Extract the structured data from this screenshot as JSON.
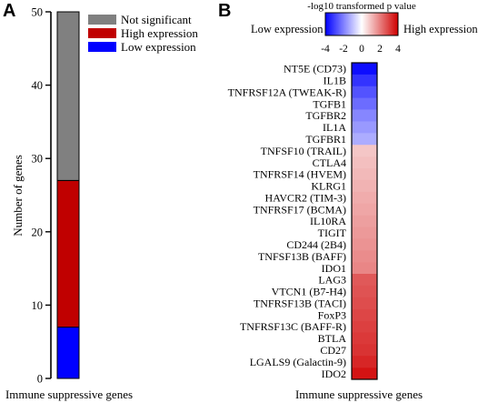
{
  "panel_a_letter": "A",
  "panel_b_letter": "B",
  "chart_data": [
    {
      "type": "bar",
      "stacked": true,
      "categories": [
        "Immune suppressive genes"
      ],
      "series": [
        {
          "name": "Low expression",
          "values": [
            7
          ],
          "color": "#0000ff"
        },
        {
          "name": "High expression",
          "values": [
            20
          ],
          "color": "#c00000"
        },
        {
          "name": "Not significant",
          "values": [
            23
          ],
          "color": "#808080"
        }
      ],
      "legend_order": [
        "Not significant",
        "High expression",
        "Low expression"
      ],
      "legend_position": "top-right",
      "xlabel": "Immune suppressive genes",
      "ylabel": "Number of genes",
      "ylim": [
        0,
        50
      ],
      "yticks": [
        0,
        10,
        20,
        30,
        40,
        50
      ],
      "grid": false
    },
    {
      "type": "heatmap",
      "xlabel": "Immune suppressive genes",
      "colorbar": {
        "title": "-log10 transformed p value",
        "range": [
          -4,
          4
        ],
        "ticks": [
          -4,
          -2,
          0,
          2,
          4
        ],
        "low_label": "Low expression",
        "high_label": "High expression",
        "low_color": "#0000ff",
        "mid_color": "#ffffff",
        "high_color": "#d00000"
      },
      "genes": [
        "NT5E (CD73)",
        "IL1B",
        "TNFRSF12A (TWEAK-R)",
        "TGFB1",
        "TGFBR2",
        "IL1A",
        "TGFBR1",
        "TNFSF10 (TRAIL)",
        "CTLA4",
        "TNFRSF14 (HVEM)",
        "KLRG1",
        "HAVCR2 (TIM-3)",
        "TNFRSF17 (BCMA)",
        "IL10RA",
        "TIGIT",
        "CD244 (2B4)",
        "TNFSF13B (BAFF)",
        "IDO1",
        "LAG3",
        "VTCN1 (B7-H4)",
        "TNFRSF13B (TACI)",
        "FoxP3",
        "TNFRSF13C (BAFF-R)",
        "BTLA",
        "CD27",
        "LGALS9 (Galactin-9)",
        "IDO2"
      ],
      "values": [
        -3.8,
        -3.2,
        -2.7,
        -2.3,
        -1.9,
        -1.6,
        -1.3,
        0.9,
        1.0,
        1.1,
        1.2,
        1.3,
        1.4,
        1.5,
        1.6,
        1.7,
        1.8,
        1.9,
        2.6,
        2.7,
        2.8,
        2.9,
        3.0,
        3.1,
        3.2,
        3.4,
        3.7
      ]
    }
  ]
}
